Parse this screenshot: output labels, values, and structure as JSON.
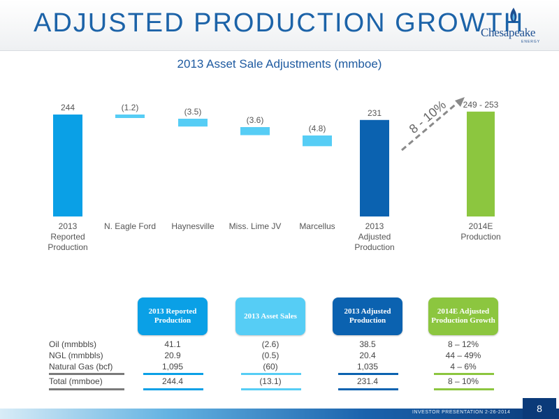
{
  "header": {
    "title": "ADJUSTED PRODUCTION GROWTH",
    "logo_text": "Chesapeake",
    "logo_sub": "ENERGY"
  },
  "footer": {
    "text": "INVESTOR PRESENTATION  2-26-2014",
    "page_number": "8"
  },
  "colors": {
    "title": "#1c63a8",
    "reported": "#0aa0e6",
    "adjustment": "#56cdf5",
    "adjusted": "#0b62b0",
    "estimate": "#8cc63f",
    "arrow": "#8a8a8a"
  },
  "chart_data": {
    "type": "bar",
    "title": "2013 Asset Sale Adjustments (mmboe)",
    "categories": [
      "2013 Reported Production",
      "N. Eagle Ford",
      "Haynesville",
      "Miss. Lime JV",
      "Marcellus",
      "2013 Adjusted Production",
      "2014E Production"
    ],
    "category_lines": [
      [
        "2013",
        "Reported",
        "Production"
      ],
      [
        "N. Eagle Ford"
      ],
      [
        "Haynesville"
      ],
      [
        "Miss. Lime JV"
      ],
      [
        "Marcellus"
      ],
      [
        "2013",
        "Adjusted",
        "Production"
      ],
      [
        "2014E",
        "Production"
      ]
    ],
    "values": [
      244,
      -1.2,
      -3.5,
      -3.6,
      -4.8,
      231,
      251
    ],
    "value_labels": [
      "244",
      "(1.2)",
      "(3.5)",
      "(3.6)",
      "(4.8)",
      "231",
      "249 - 253"
    ],
    "kinds": [
      "total",
      "delta",
      "delta",
      "delta",
      "delta",
      "total",
      "estimate"
    ],
    "arrow_label": "8 - 10%"
  },
  "table": {
    "headers": [
      "2013 Reported Production",
      "2013 Asset Sales",
      "2013 Adjusted Production",
      "2014E Adjusted Production Growth"
    ],
    "rows": [
      {
        "label": "Oil (mmbbls)",
        "values": [
          "41.1",
          "(2.6)",
          "38.5",
          "8 – 12%"
        ]
      },
      {
        "label": "NGL (mmbbls)",
        "values": [
          "20.9",
          "(0.5)",
          "20.4",
          "44 – 49%"
        ]
      },
      {
        "label": "Natural Gas (bcf)",
        "values": [
          "1,095",
          "(60)",
          "1,035",
          "4 – 6%"
        ]
      }
    ],
    "total": {
      "label": "Total (mmboe)",
      "values": [
        "244.4",
        "(13.1)",
        "231.4",
        "8 – 10%"
      ]
    }
  }
}
